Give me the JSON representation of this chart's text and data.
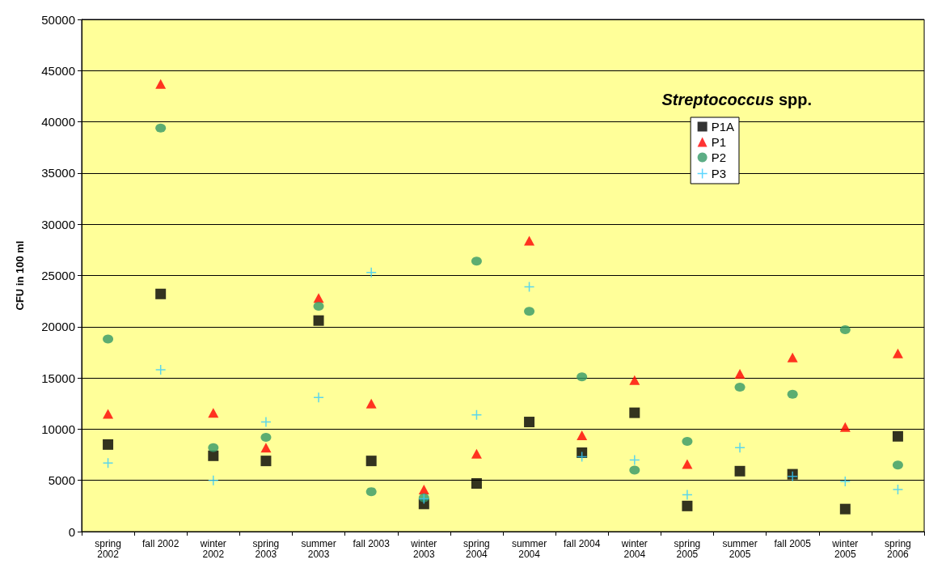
{
  "chart_data": {
    "type": "scatter",
    "title": "Streptococcus spp.",
    "ylabel": "CFU in 100 ml",
    "categories": [
      "spring\n2002",
      "fall 2002",
      "winter\n2002",
      "spring\n2003",
      "summer\n2003",
      "fall 2003",
      "winter\n2003",
      "spring\n2004",
      "summer\n2004",
      "fall 2004",
      "winter\n2004",
      "spring\n2005",
      "summer\n2005",
      "fall 2005",
      "winter\n2005",
      "spring\n2006"
    ],
    "series": [
      {
        "name": "P1A",
        "color": "#000000",
        "marker": "square",
        "values": [
          8500,
          23200,
          7400,
          6900,
          20600,
          6900,
          2700,
          4700,
          10700,
          7700,
          11600,
          2500,
          5900,
          5600,
          2200,
          9300
        ]
      },
      {
        "name": "P1",
        "color": "#ff0000",
        "marker": "triangle",
        "values": [
          11500,
          43700,
          11600,
          8200,
          22800,
          12500,
          4100,
          7600,
          28400,
          9400,
          14800,
          6600,
          15400,
          17000,
          10200,
          17400
        ]
      },
      {
        "name": "P2",
        "color": "#339966",
        "marker": "circle",
        "values": [
          18800,
          39400,
          8200,
          9200,
          22000,
          3900,
          3300,
          26400,
          21500,
          15100,
          6000,
          8800,
          14100,
          13400,
          19700,
          6500
        ]
      },
      {
        "name": "P3",
        "color": "#33ccff",
        "marker": "cross",
        "values": [
          6700,
          15800,
          5000,
          10700,
          13100,
          25300,
          3200,
          11400,
          23900,
          7300,
          7000,
          3600,
          8200,
          5400,
          4900,
          4100
        ]
      }
    ],
    "ylim": [
      0,
      50000
    ],
    "yticks": [
      0,
      5000,
      10000,
      15000,
      20000,
      25000,
      30000,
      35000,
      40000,
      45000,
      50000
    ],
    "grid": "y",
    "legend": "top right"
  }
}
